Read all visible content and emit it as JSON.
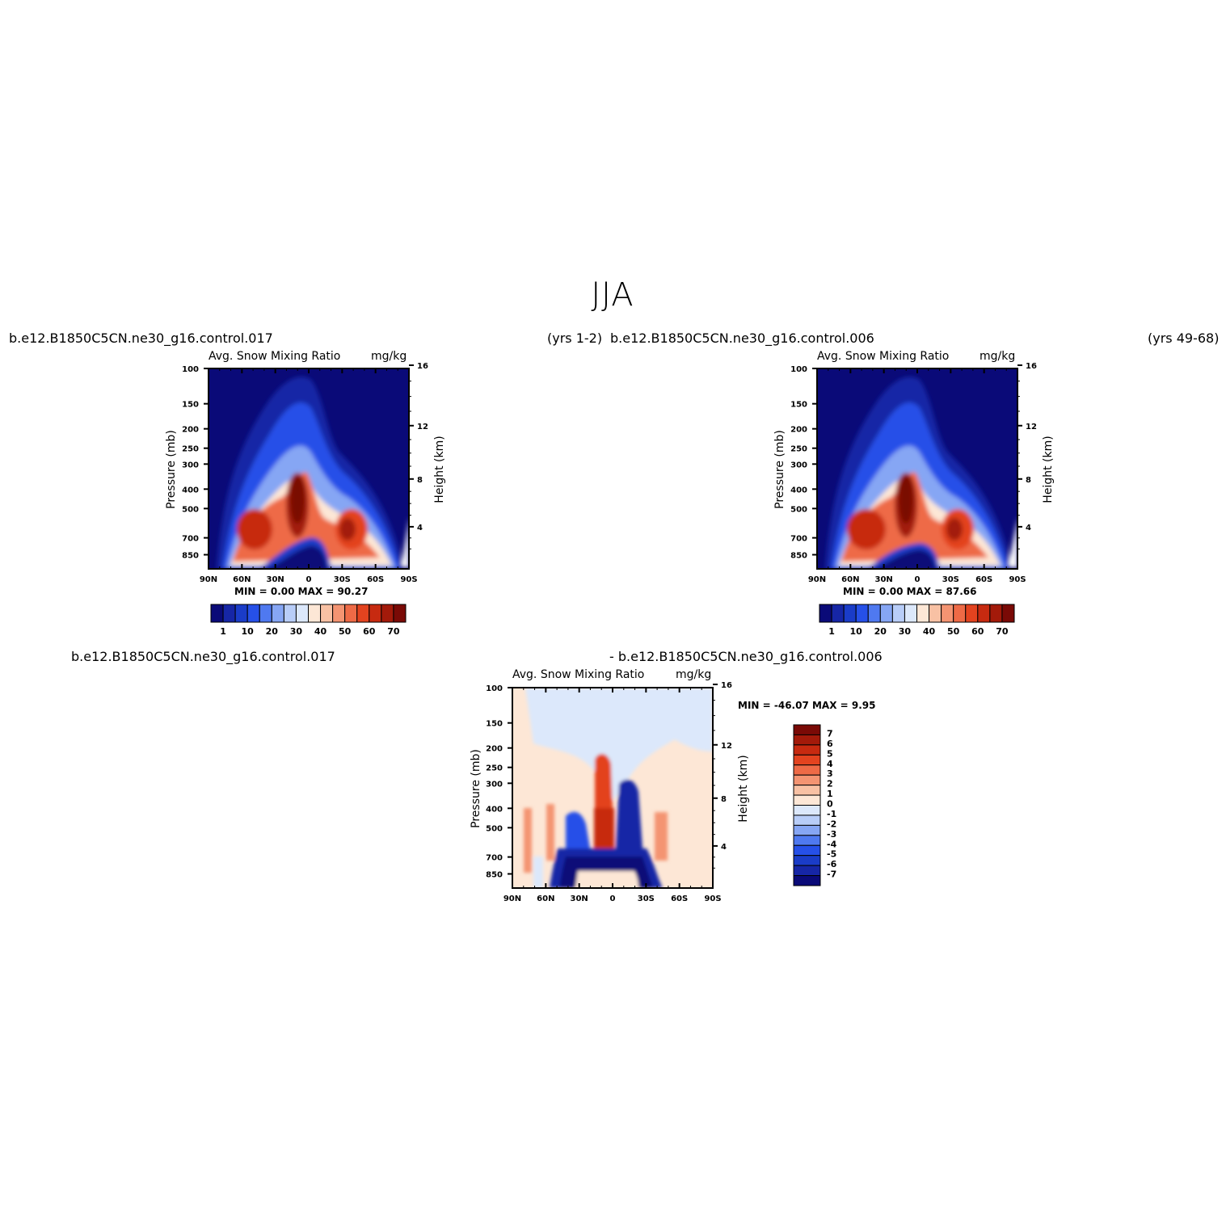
{
  "page": {
    "title": "JJA"
  },
  "panels": [
    {
      "case_label": "b.e12.B1850C5CN.ne30_g16.control.017",
      "years_label": "(yrs  1-2)",
      "var_title": "Avg.  Snow  Mixing  Ratio",
      "units": "mg/kg",
      "ylabel_left": "Pressure  (mb)",
      "ylabel_right": "Height  (km)",
      "stats": "MIN =     0.00    MAX =    90.27"
    },
    {
      "case_label": "b.e12.B1850C5CN.ne30_g16.control.006",
      "years_label": "(yrs  49-68)",
      "var_title": "Avg.  Snow  Mixing  Ratio",
      "units": "mg/kg",
      "ylabel_left": "Pressure  (mb)",
      "ylabel_right": "Height  (km)",
      "stats": "MIN =     0.00    MAX =    87.66"
    },
    {
      "case_label_left": "b.e12.B1850C5CN.ne30_g16.control.017",
      "case_label_right": "-  b.e12.B1850C5CN.ne30_g16.control.006",
      "var_title": "Avg.  Snow  Mixing  Ratio",
      "units": "mg/kg",
      "ylabel_left": "Pressure  (mb)",
      "ylabel_right": "Height  (km)",
      "stats": "MIN =  -46.07    MAX =      9.95"
    }
  ],
  "chart_data": [
    {
      "type": "heatmap",
      "title": "Avg.  Snow  Mixing  Ratio",
      "units": "mg/kg",
      "xlabel": "",
      "ylabel": "Pressure  (mb)",
      "ylabel_right": "Height  (km)",
      "x_ticks": [
        "90N",
        "60N",
        "30N",
        "0",
        "30S",
        "60S",
        "90S"
      ],
      "y_ticks": [
        "100",
        "150",
        "200",
        "250",
        "300",
        "400",
        "500",
        "700",
        "850"
      ],
      "y_right_ticks": [
        "16",
        "12",
        "8",
        "4"
      ],
      "y_scale": "log",
      "min": 0.0,
      "max": 90.27,
      "colorbar_labels": [
        "1",
        "10",
        "20",
        "30",
        "40",
        "50",
        "60",
        "70"
      ],
      "colorbar_colors": [
        "#0a0a78",
        "#1626a6",
        "#1a3cc8",
        "#2650e8",
        "#4f79f0",
        "#86a6f4",
        "#b8cdf8",
        "#dce8fb",
        "#fde7d6",
        "#f8c1a4",
        "#f49472",
        "#ee6a46",
        "#e3431f",
        "#c72a10",
        "#a31a0a",
        "#7a0a06"
      ]
    },
    {
      "type": "heatmap",
      "title": "Avg.  Snow  Mixing  Ratio",
      "units": "mg/kg",
      "xlabel": "",
      "ylabel": "Pressure  (mb)",
      "ylabel_right": "Height  (km)",
      "x_ticks": [
        "90N",
        "60N",
        "30N",
        "0",
        "30S",
        "60S",
        "90S"
      ],
      "y_ticks": [
        "100",
        "150",
        "200",
        "250",
        "300",
        "400",
        "500",
        "700",
        "850"
      ],
      "y_right_ticks": [
        "16",
        "12",
        "8",
        "4"
      ],
      "y_scale": "log",
      "min": 0.0,
      "max": 87.66,
      "colorbar_labels": [
        "1",
        "10",
        "20",
        "30",
        "40",
        "50",
        "60",
        "70"
      ],
      "colorbar_colors": [
        "#0a0a78",
        "#1626a6",
        "#1a3cc8",
        "#2650e8",
        "#4f79f0",
        "#86a6f4",
        "#b8cdf8",
        "#dce8fb",
        "#fde7d6",
        "#f8c1a4",
        "#f49472",
        "#ee6a46",
        "#e3431f",
        "#c72a10",
        "#a31a0a",
        "#7a0a06"
      ]
    },
    {
      "type": "heatmap",
      "title": "Avg.  Snow  Mixing  Ratio",
      "units": "mg/kg",
      "xlabel": "",
      "ylabel": "Pressure  (mb)",
      "ylabel_right": "Height  (km)",
      "x_ticks": [
        "90N",
        "60N",
        "30N",
        "0",
        "30S",
        "60S",
        "90S"
      ],
      "y_ticks": [
        "100",
        "150",
        "200",
        "250",
        "300",
        "400",
        "500",
        "700",
        "850"
      ],
      "y_right_ticks": [
        "16",
        "12",
        "8",
        "4"
      ],
      "y_scale": "log",
      "min": -46.07,
      "max": 9.95,
      "colorbar_labels": [
        "7",
        "6",
        "5",
        "4",
        "3",
        "2",
        "1",
        "0",
        "-1",
        "-2",
        "-3",
        "-4",
        "-5",
        "-6",
        "-7"
      ],
      "colorbar_colors": [
        "#7a0a06",
        "#a31a0a",
        "#c72a10",
        "#e3431f",
        "#ee6a46",
        "#f49472",
        "#f8c1a4",
        "#fde7d6",
        "#dce8fb",
        "#b8cdf8",
        "#86a6f4",
        "#4f79f0",
        "#2650e8",
        "#1a3cc8",
        "#1626a6",
        "#0a0a78"
      ]
    }
  ]
}
